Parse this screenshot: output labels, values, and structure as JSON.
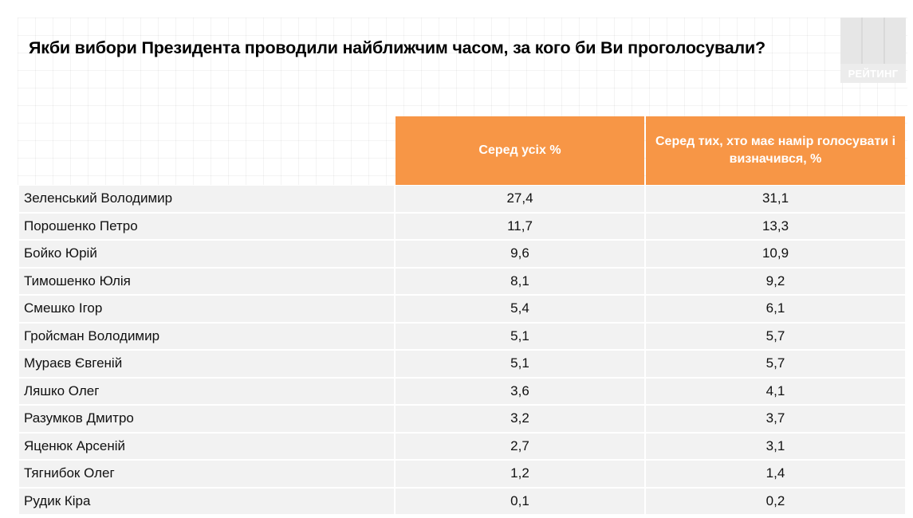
{
  "title": "Якби вибори Президента проводили найближчим часом, за кого би Ви проголосували?",
  "logo": {
    "text": "РЕЙТИНГ"
  },
  "colors": {
    "header": "#f79646",
    "row": "#f2f2f2"
  },
  "chart_data": {
    "type": "table",
    "title": "Якби вибори Президента проводили найближчим часом, за кого би Ви проголосували?",
    "columns": [
      "Серед усіх %",
      "Серед тих, хто має намір голосувати і визначився, %"
    ],
    "rows": [
      {
        "name": "Зеленський Володимир",
        "all": "27,4",
        "decided": "31,1"
      },
      {
        "name": "Порошенко Петро",
        "all": "11,7",
        "decided": "13,3"
      },
      {
        "name": "Бойко Юрій",
        "all": "9,6",
        "decided": "10,9"
      },
      {
        "name": "Тимошенко Юлія",
        "all": "8,1",
        "decided": "9,2"
      },
      {
        "name": "Смешко Ігор",
        "all": "5,4",
        "decided": "6,1"
      },
      {
        "name": "Гройсман Володимир",
        "all": "5,1",
        "decided": "5,7"
      },
      {
        "name": "Мураєв Євгеній",
        "all": "5,1",
        "decided": "5,7"
      },
      {
        "name": "Ляшко Олег",
        "all": "3,6",
        "decided": "4,1"
      },
      {
        "name": "Разумков Дмитро",
        "all": "3,2",
        "decided": "3,7"
      },
      {
        "name": "Яценюк  Арсеній",
        "all": "2,7",
        "decided": "3,1"
      },
      {
        "name": "Тягнибок Олег",
        "all": "1,2",
        "decided": "1,4"
      },
      {
        "name": "Рудик Кіра",
        "all": "0,1",
        "decided": "0,2"
      }
    ]
  }
}
